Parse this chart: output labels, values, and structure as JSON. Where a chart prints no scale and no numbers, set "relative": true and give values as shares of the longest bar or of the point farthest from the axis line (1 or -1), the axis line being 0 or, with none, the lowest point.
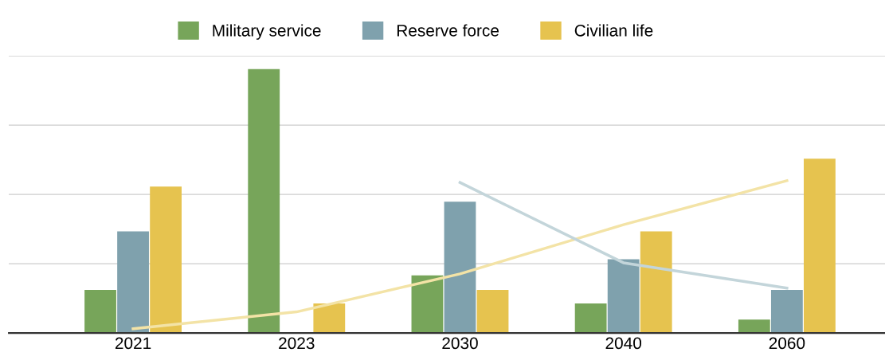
{
  "chart_data": {
    "type": "bar",
    "relative": true,
    "categories": [
      "2021",
      "2023",
      "2030",
      "2040",
      "2060"
    ],
    "series": [
      {
        "name": "Military service",
        "color": "#77a55a",
        "values": [
          0.163,
          1,
          0.218,
          0.112,
          0.051
        ]
      },
      {
        "name": "Reserve force",
        "color": "#7fa1ad",
        "values": [
          0.385,
          null,
          0.497,
          0.279,
          0.163
        ]
      },
      {
        "name": "Civilian life",
        "color": "#e6c34f",
        "values": [
          0.555,
          0.112,
          0.163,
          0.385,
          0.66
        ]
      },
      {
        "type": "line",
        "color": "#f3e3a6",
        "values": [
          0.016,
          0.08,
          0.224,
          0.41,
          0.577
        ]
      },
      {
        "type": "line",
        "color": "#c3d5da",
        "values": [
          null,
          null,
          0.57,
          0.266,
          0.17
        ]
      }
    ],
    "grid": "y",
    "legend": "top",
    "tick_labels": "x"
  }
}
